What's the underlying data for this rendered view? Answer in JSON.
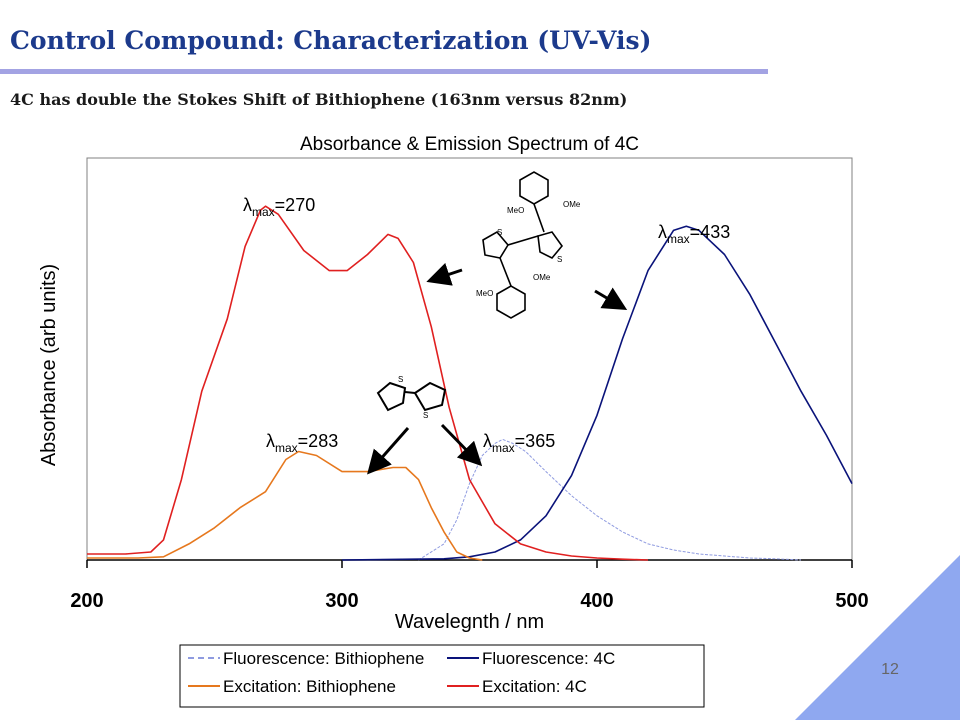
{
  "slide": {
    "title": "Control Compound: Characterization (UV-Vis)",
    "subtitle": "4C has double the Stokes Shift of Bithiophene (163nm versus 82nm)",
    "page_number": "12"
  },
  "colors": {
    "title": "#1c3a8c",
    "rule": "#a3a3e3",
    "excitation_4c": "#e02020",
    "fluorescence_4c": "#0a137a",
    "excitation_bithiophene": "#e6781e",
    "fluorescence_bithiophene": "#8f9be0",
    "corner": "#8fa8f0"
  },
  "chart_data": {
    "type": "line",
    "title": "Absorbance & Emission Spectrum of 4C",
    "xlabel": "Wavelegnth / nm",
    "ylabel": "Absorbance (arb units)",
    "xlim": [
      200,
      500
    ],
    "ylim": [
      0,
      1.0
    ],
    "xticks": [
      200,
      300,
      400,
      500
    ],
    "xtick_labels": [
      "200",
      "300",
      "400",
      "500"
    ],
    "grid": false,
    "legend_position": "bottom",
    "series": [
      {
        "name": "Fluorescence: Bithiophene",
        "style": "dashed",
        "color": "#8f9be0",
        "x": [
          330,
          340,
          345,
          350,
          355,
          360,
          363,
          367,
          372,
          380,
          390,
          400,
          410,
          420,
          430,
          440,
          450,
          460,
          470,
          480
        ],
        "y": [
          0.0,
          0.04,
          0.1,
          0.19,
          0.26,
          0.29,
          0.3,
          0.29,
          0.27,
          0.22,
          0.16,
          0.11,
          0.07,
          0.04,
          0.025,
          0.015,
          0.01,
          0.005,
          0.003,
          0.0
        ]
      },
      {
        "name": "Fluorescence: 4C",
        "style": "solid",
        "color": "#0a137a",
        "x": [
          300,
          340,
          350,
          360,
          370,
          380,
          390,
          400,
          410,
          420,
          430,
          435,
          440,
          450,
          460,
          470,
          480,
          490,
          500
        ],
        "y": [
          0.0,
          0.003,
          0.008,
          0.02,
          0.05,
          0.11,
          0.21,
          0.36,
          0.55,
          0.72,
          0.82,
          0.83,
          0.82,
          0.76,
          0.66,
          0.54,
          0.42,
          0.31,
          0.19
        ]
      },
      {
        "name": "Excitation: Bithiophene",
        "style": "solid",
        "color": "#e6781e",
        "x": [
          200,
          220,
          230,
          240,
          250,
          260,
          270,
          278,
          283,
          290,
          300,
          310,
          320,
          325,
          330,
          335,
          340,
          345,
          350,
          355
        ],
        "y": [
          0.005,
          0.005,
          0.008,
          0.04,
          0.08,
          0.13,
          0.17,
          0.25,
          0.27,
          0.26,
          0.22,
          0.22,
          0.23,
          0.23,
          0.2,
          0.13,
          0.07,
          0.02,
          0.005,
          0.0
        ]
      },
      {
        "name": "Excitation: 4C",
        "style": "solid",
        "color": "#e02020",
        "x": [
          200,
          215,
          225,
          230,
          237,
          245,
          255,
          262,
          268,
          270,
          275,
          285,
          295,
          302,
          310,
          318,
          322,
          328,
          335,
          342,
          350,
          360,
          370,
          380,
          390,
          400,
          410,
          420
        ],
        "y": [
          0.015,
          0.015,
          0.02,
          0.05,
          0.2,
          0.42,
          0.6,
          0.78,
          0.87,
          0.88,
          0.86,
          0.77,
          0.72,
          0.72,
          0.76,
          0.81,
          0.8,
          0.74,
          0.58,
          0.38,
          0.2,
          0.09,
          0.04,
          0.02,
          0.01,
          0.005,
          0.002,
          0.0
        ]
      }
    ],
    "annotations": [
      {
        "label": "λ",
        "sub": "max",
        "value": "=270"
      },
      {
        "label": "λ",
        "sub": "max",
        "value": "=433"
      },
      {
        "label": "λ",
        "sub": "max",
        "value": "=283"
      },
      {
        "label": "λ",
        "sub": "max",
        "value": "=365"
      }
    ],
    "structures": [
      {
        "name": "4C",
        "labels": [
          "OMe",
          "MeO",
          "OMe",
          "MeO",
          "S",
          "S"
        ]
      },
      {
        "name": "Bithiophene",
        "labels": [
          "S",
          "S"
        ]
      }
    ]
  }
}
